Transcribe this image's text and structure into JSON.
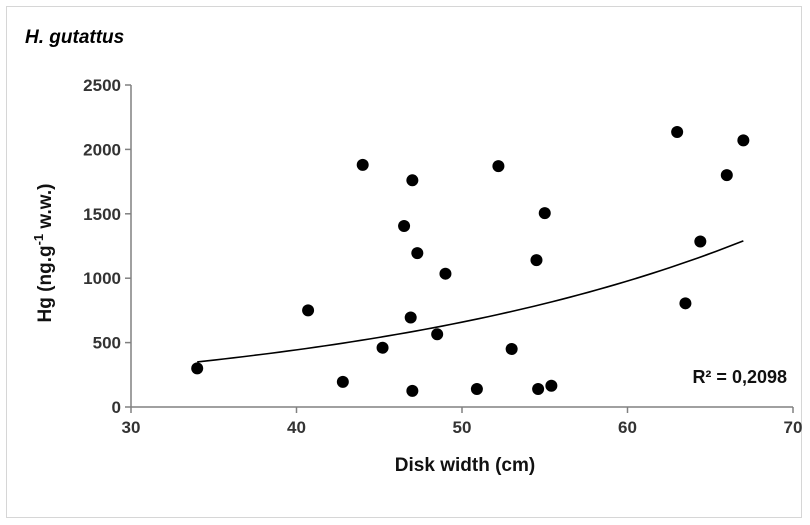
{
  "chart_data": {
    "type": "scatter",
    "title": "H. gutattus",
    "xlabel": "Disk width (cm)",
    "ylabel": {
      "prefix": "Hg (ng.g",
      "sup": "-1",
      "suffix": " w.w.)"
    },
    "xlim": [
      30,
      70
    ],
    "ylim": [
      0,
      2500
    ],
    "xticks": [
      30,
      40,
      50,
      60,
      70
    ],
    "yticks": [
      0,
      500,
      1000,
      1500,
      2000,
      2500
    ],
    "grid": false,
    "points": [
      {
        "x": 34.0,
        "y": 300
      },
      {
        "x": 40.7,
        "y": 750
      },
      {
        "x": 42.8,
        "y": 195
      },
      {
        "x": 44.0,
        "y": 1880
      },
      {
        "x": 45.2,
        "y": 460
      },
      {
        "x": 46.5,
        "y": 1405
      },
      {
        "x": 46.9,
        "y": 695
      },
      {
        "x": 47.0,
        "y": 1760
      },
      {
        "x": 47.0,
        "y": 125
      },
      {
        "x": 47.3,
        "y": 1195
      },
      {
        "x": 48.5,
        "y": 565
      },
      {
        "x": 49.0,
        "y": 1035
      },
      {
        "x": 50.9,
        "y": 140
      },
      {
        "x": 52.2,
        "y": 1870
      },
      {
        "x": 53.0,
        "y": 450
      },
      {
        "x": 54.5,
        "y": 1140
      },
      {
        "x": 54.6,
        "y": 140
      },
      {
        "x": 55.0,
        "y": 1505
      },
      {
        "x": 55.4,
        "y": 165
      },
      {
        "x": 63.0,
        "y": 2135
      },
      {
        "x": 63.5,
        "y": 805
      },
      {
        "x": 64.4,
        "y": 1285
      },
      {
        "x": 66.0,
        "y": 1800
      },
      {
        "x": 67.0,
        "y": 2070
      }
    ],
    "trendline": {
      "type": "exponential",
      "x_start": 34,
      "x_end": 67,
      "y_start": 350,
      "y_end": 1290
    },
    "annotation": "R² = 0,2098",
    "point_color": "#000000",
    "line_color": "#000000"
  }
}
